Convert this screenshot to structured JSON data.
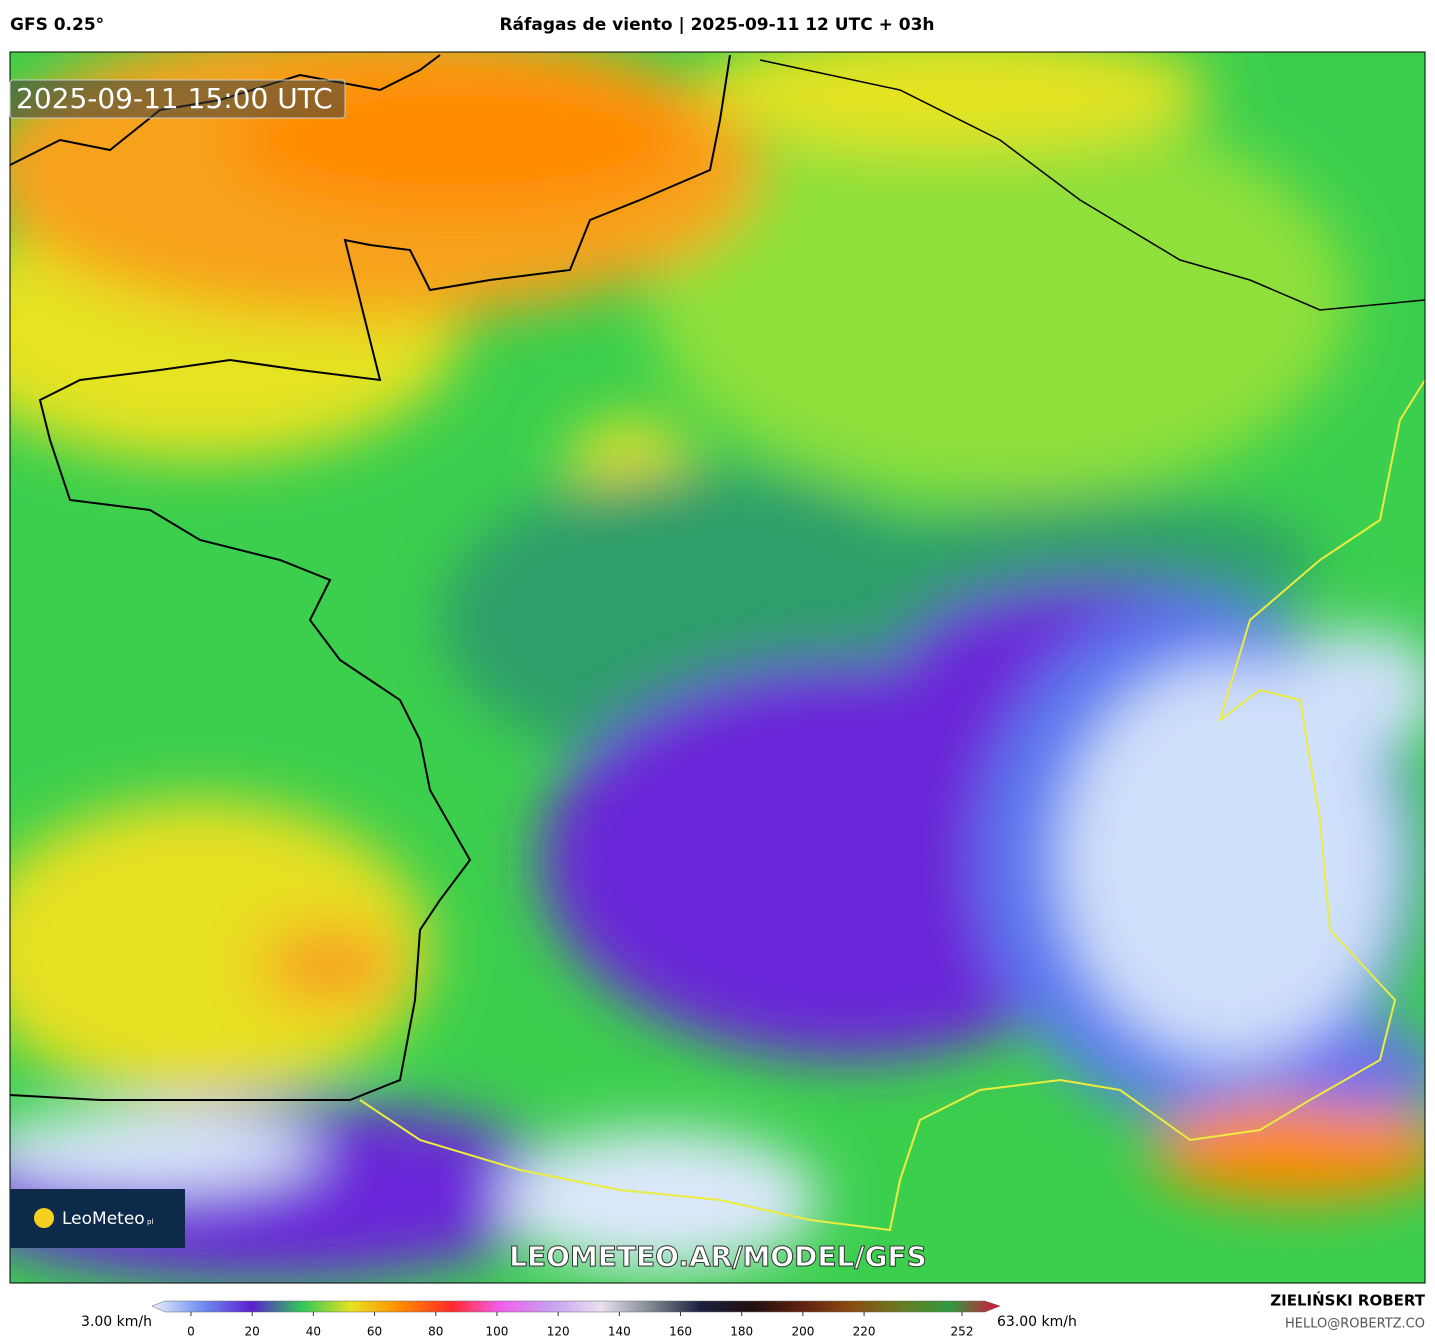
{
  "header": {
    "model": "GFS 0.25°",
    "title": "Ráfagas de viento | 2025-09-11 12 UTC + 03h"
  },
  "map": {
    "timestamp": "2025-09-11 15:00 UTC",
    "watermark": "LEOMETEO.AR/MODEL/GFS",
    "logo": "LeoMeteo",
    "logo_suffix": "pl"
  },
  "colorbar": {
    "min_label": "3.00 km/h",
    "max_label": "63.00 km/h",
    "ticks": [
      0,
      20,
      40,
      60,
      80,
      100,
      120,
      140,
      160,
      180,
      200,
      220,
      252
    ],
    "colors": [
      "#e8f0fc",
      "#6f8ff0",
      "#5a1fd0",
      "#2fc85a",
      "#e8e020",
      "#ff8a00",
      "#ff2a2a",
      "#f060f0",
      "#c8a0f0",
      "#e8e0f0",
      "#808890",
      "#1a2040",
      "#201010",
      "#602010",
      "#8a4a10",
      "#6a7a20",
      "#2f9a40",
      "#e0103a"
    ]
  },
  "credits": {
    "author": "ZIELIŃSKI ROBERT",
    "contact": "HELLO@ROBERTZ.CO"
  }
}
